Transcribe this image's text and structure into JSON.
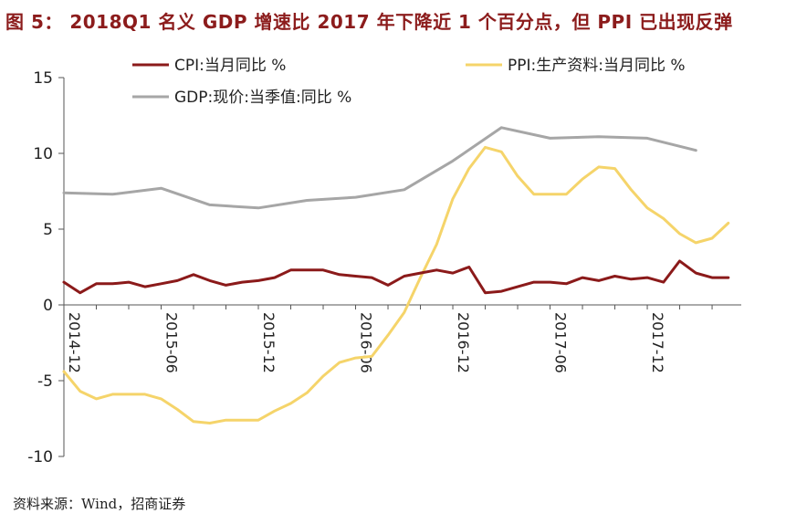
{
  "figure_title": "图 5：  2018Q1 名义 GDP 增速比 2017 年下降近 1 个百分点，但 PPI 已出现反弹",
  "source": "资料来源：Wind，招商证券",
  "colors": {
    "cpi": "#8b1a1a",
    "ppi": "#f5d46a",
    "gdp": "#a6a6a6",
    "axis": "#555555",
    "title": "#8c1c1c"
  },
  "chart_data": {
    "type": "line",
    "title": "",
    "xlabel": "",
    "ylabel": "",
    "ylim": [
      -10,
      15
    ],
    "yticks": [
      "15",
      "10",
      "5",
      "0",
      "-5",
      "-10"
    ],
    "x_tick_labels": [
      "2014-12",
      "2015-06",
      "2015-12",
      "2016-06",
      "2016-12",
      "2017-06",
      "2017-12"
    ],
    "x_range": [
      0,
      40
    ],
    "legend_placement": "top",
    "series": [
      {
        "key": "cpi",
        "name": "CPI:当月同比 %",
        "points": [
          [
            0,
            1.5
          ],
          [
            1,
            0.8
          ],
          [
            2,
            1.4
          ],
          [
            3,
            1.4
          ],
          [
            4,
            1.5
          ],
          [
            5,
            1.2
          ],
          [
            6,
            1.4
          ],
          [
            7,
            1.6
          ],
          [
            8,
            2.0
          ],
          [
            9,
            1.6
          ],
          [
            10,
            1.3
          ],
          [
            11,
            1.5
          ],
          [
            12,
            1.6
          ],
          [
            13,
            1.8
          ],
          [
            14,
            2.3
          ],
          [
            15,
            2.3
          ],
          [
            16,
            2.3
          ],
          [
            17,
            2.0
          ],
          [
            18,
            1.9
          ],
          [
            19,
            1.8
          ],
          [
            20,
            1.3
          ],
          [
            21,
            1.9
          ],
          [
            22,
            2.1
          ],
          [
            23,
            2.3
          ],
          [
            24,
            2.1
          ],
          [
            25,
            2.5
          ],
          [
            26,
            0.8
          ],
          [
            27,
            0.9
          ],
          [
            28,
            1.2
          ],
          [
            29,
            1.5
          ],
          [
            30,
            1.5
          ],
          [
            31,
            1.4
          ],
          [
            32,
            1.8
          ],
          [
            33,
            1.6
          ],
          [
            34,
            1.9
          ],
          [
            35,
            1.7
          ],
          [
            36,
            1.8
          ],
          [
            37,
            1.5
          ],
          [
            38,
            2.9
          ],
          [
            39,
            2.1
          ],
          [
            40,
            1.8
          ],
          [
            41,
            1.8
          ]
        ]
      },
      {
        "key": "ppi",
        "name": "PPI:生产资料:当月同比 %",
        "points": [
          [
            0,
            -4.4
          ],
          [
            1,
            -5.7
          ],
          [
            2,
            -6.2
          ],
          [
            3,
            -5.9
          ],
          [
            4,
            -5.9
          ],
          [
            5,
            -5.9
          ],
          [
            6,
            -6.2
          ],
          [
            7,
            -6.9
          ],
          [
            8,
            -7.7
          ],
          [
            9,
            -7.8
          ],
          [
            10,
            -7.6
          ],
          [
            11,
            -7.6
          ],
          [
            12,
            -7.6
          ],
          [
            13,
            -7.0
          ],
          [
            14,
            -6.5
          ],
          [
            15,
            -5.8
          ],
          [
            16,
            -4.7
          ],
          [
            17,
            -3.8
          ],
          [
            18,
            -3.5
          ],
          [
            19,
            -3.4
          ],
          [
            20,
            -2.0
          ],
          [
            21,
            -0.5
          ],
          [
            22,
            1.8
          ],
          [
            23,
            4.0
          ],
          [
            24,
            7.0
          ],
          [
            25,
            9.0
          ],
          [
            26,
            10.4
          ],
          [
            27,
            10.1
          ],
          [
            28,
            8.5
          ],
          [
            29,
            7.3
          ],
          [
            30,
            7.3
          ],
          [
            31,
            7.3
          ],
          [
            32,
            8.3
          ],
          [
            33,
            9.1
          ],
          [
            34,
            9.0
          ],
          [
            35,
            7.6
          ],
          [
            36,
            6.4
          ],
          [
            37,
            5.7
          ],
          [
            38,
            4.7
          ],
          [
            39,
            4.1
          ],
          [
            40,
            4.4
          ],
          [
            41,
            5.4
          ]
        ]
      },
      {
        "key": "gdp",
        "name": "GDP:现价:当季值:同比 %",
        "points": [
          [
            0,
            7.4
          ],
          [
            3,
            7.3
          ],
          [
            6,
            7.7
          ],
          [
            9,
            6.6
          ],
          [
            12,
            6.4
          ],
          [
            15,
            6.9
          ],
          [
            18,
            7.1
          ],
          [
            21,
            7.6
          ],
          [
            24,
            9.5
          ],
          [
            27,
            11.7
          ],
          [
            30,
            11.0
          ],
          [
            33,
            11.1
          ],
          [
            36,
            11.0
          ],
          [
            39,
            10.2
          ]
        ]
      }
    ]
  }
}
